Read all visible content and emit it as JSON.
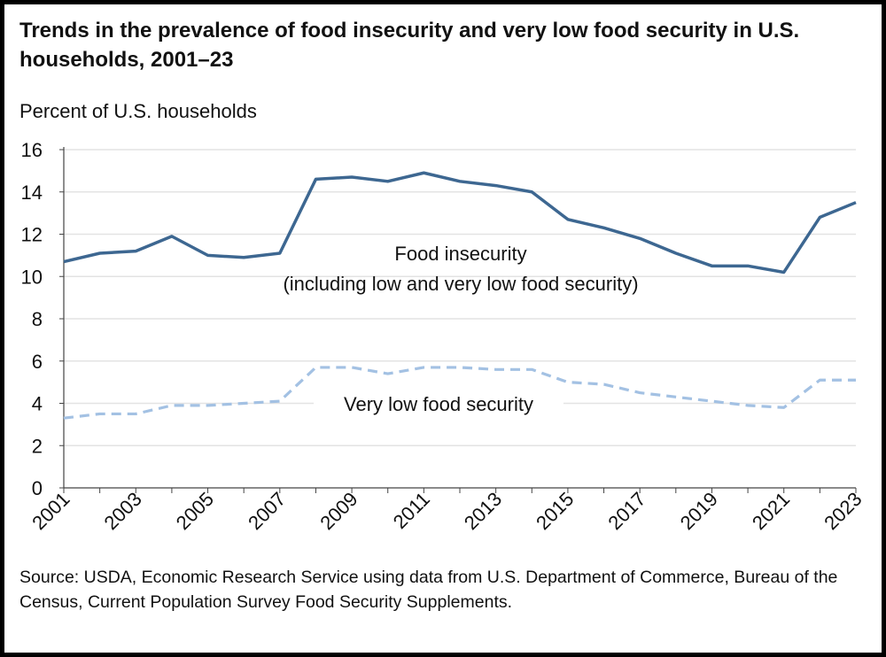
{
  "chart_data": {
    "type": "line",
    "title": "Trends in the prevalence of food insecurity and very low food security in U.S. households, 2001–23",
    "ylabel": "Percent of U.S. households",
    "xlabel": "",
    "ylim": [
      0,
      16
    ],
    "yticks": [
      0,
      2,
      4,
      6,
      8,
      10,
      12,
      14,
      16
    ],
    "xticks": [
      "2001",
      "2003",
      "2005",
      "2007",
      "2009",
      "2011",
      "2013",
      "2015",
      "2017",
      "2019",
      "2021",
      "2023"
    ],
    "grid": "horizontal",
    "x": [
      2001,
      2002,
      2003,
      2004,
      2005,
      2006,
      2007,
      2008,
      2009,
      2010,
      2011,
      2012,
      2013,
      2014,
      2015,
      2016,
      2017,
      2018,
      2019,
      2020,
      2021,
      2022,
      2023
    ],
    "series": [
      {
        "name": "Food insecurity",
        "label_lines": [
          "Food insecurity",
          "(including low and very low food security)"
        ],
        "color": "#3d6791",
        "style": "solid",
        "values": [
          10.7,
          11.1,
          11.2,
          11.9,
          11.0,
          10.9,
          11.1,
          14.6,
          14.7,
          14.5,
          14.9,
          14.5,
          14.3,
          14.0,
          12.7,
          12.3,
          11.8,
          11.1,
          10.5,
          10.5,
          10.2,
          12.8,
          13.5
        ]
      },
      {
        "name": "Very low food security",
        "label_lines": [
          "Very low food security"
        ],
        "color": "#a3c1e3",
        "style": "dashed",
        "values": [
          3.3,
          3.5,
          3.5,
          3.9,
          3.9,
          4.0,
          4.1,
          5.7,
          5.7,
          5.4,
          5.7,
          5.7,
          5.6,
          5.6,
          5.0,
          4.9,
          4.5,
          4.3,
          4.1,
          3.9,
          3.8,
          5.1,
          5.1
        ]
      }
    ],
    "source": "Source: USDA, Economic Research Service using data from U.S. Department of Commerce, Bureau of the Census, Current Population Survey Food Security Supplements."
  }
}
